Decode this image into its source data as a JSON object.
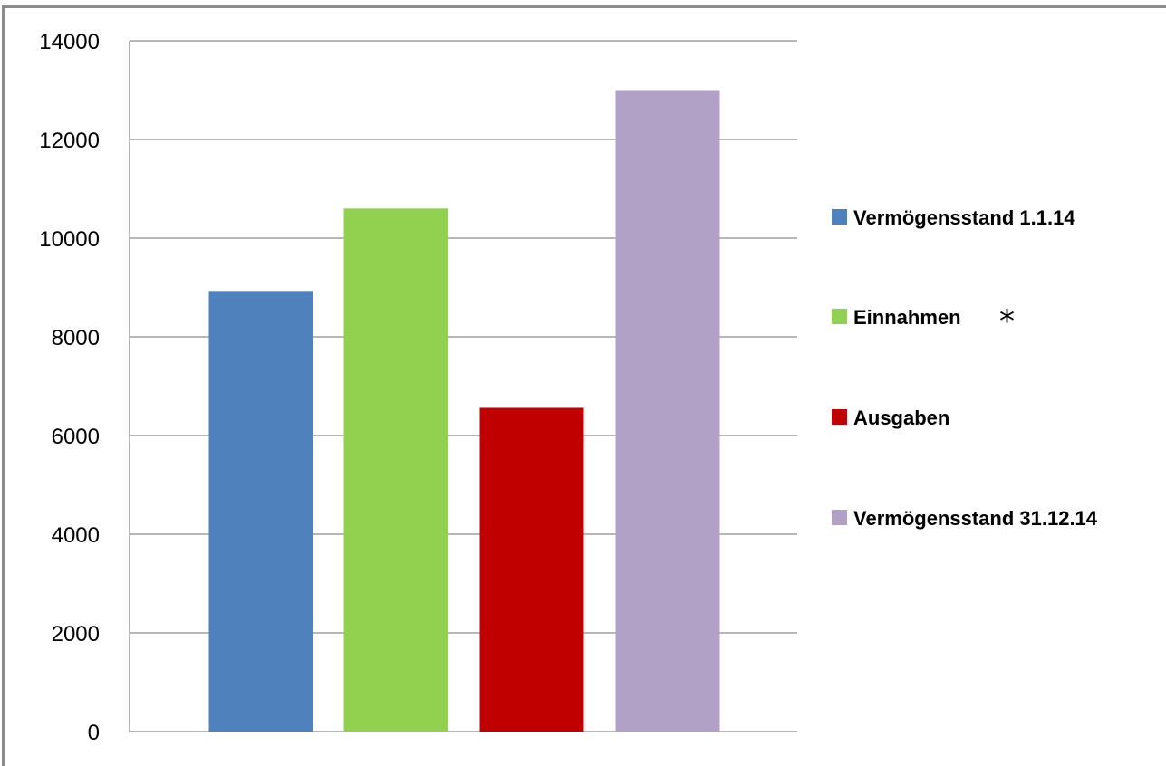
{
  "chart_data": {
    "type": "bar",
    "categories": [
      "Vermögensstand 1.1.14",
      "Einnahmen",
      "Ausgaben",
      "Vermögensstand 31.12.14"
    ],
    "values": [
      8930,
      10600,
      6560,
      13000
    ],
    "colors": [
      "#4f81bd",
      "#92d050",
      "#c00000",
      "#b2a1c7"
    ],
    "ylim": [
      0,
      14000
    ],
    "yticks": [
      "0",
      "2000",
      "4000",
      "6000",
      "8000",
      "10000",
      "12000",
      "14000"
    ],
    "grid": true,
    "legend_position": "right",
    "legend": [
      {
        "label": "Vermögensstand 1.1.14",
        "color": "#4f81bd"
      },
      {
        "label": "Einnahmen",
        "color": "#92d050",
        "note": "*"
      },
      {
        "label": "Ausgaben",
        "color": "#c00000"
      },
      {
        "label": "Vermögensstand 31.12.14",
        "color": "#b2a1c7"
      }
    ]
  }
}
